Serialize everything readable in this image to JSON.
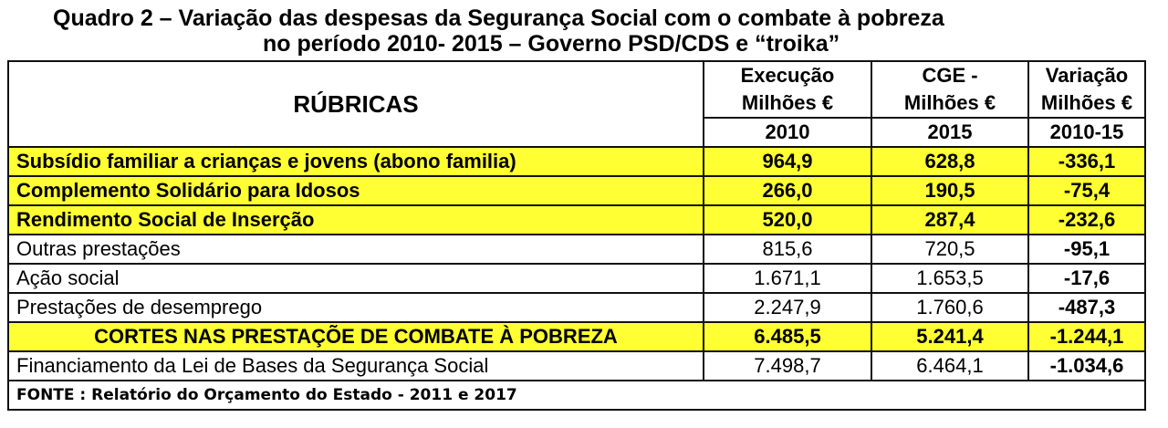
{
  "title": {
    "line1": "Quadro 2 – Variação das despesas da Segurança Social com o combate à pobreza",
    "line2": "no período 2010- 2015 – Governo PSD/CDS e “troika”"
  },
  "header": {
    "label": "RÚBRICAS",
    "col1": {
      "line1": "Execução",
      "line2": "Milhões €",
      "year": "2010"
    },
    "col2": {
      "line1": "CGE -",
      "line2": "Milhões €",
      "year": "2015"
    },
    "col3": {
      "line1": "Variação",
      "line2": "Milhões €",
      "year": "2010-15"
    }
  },
  "rows": [
    {
      "label": "Subsídio familiar a crianças e jovens (abono familia)",
      "v2010": "964,9",
      "v2015": "628,8",
      "var": "-336,1",
      "highlight": true
    },
    {
      "label": "Complemento Solidário para Idosos",
      "v2010": "266,0",
      "v2015": "190,5",
      "var": "-75,4",
      "highlight": true
    },
    {
      "label": "Rendimento Social de Inserção",
      "v2010": "520,0",
      "v2015": "287,4",
      "var": "-232,6",
      "highlight": true
    },
    {
      "label": "Outras prestações",
      "v2010": "815,6",
      "v2015": "720,5",
      "var": "-95,1",
      "highlight": false
    },
    {
      "label": "Ação social",
      "v2010": "1.671,1",
      "v2015": "1.653,5",
      "var": "-17,6",
      "highlight": false
    },
    {
      "label": "Prestações de desemprego",
      "v2010": "2.247,9",
      "v2015": "1.760,6",
      "var": "-487,3",
      "highlight": false
    },
    {
      "label": "CORTES NAS PRESTAÇÕE DE COMBATE À POBREZA",
      "v2010": "6.485,5",
      "v2015": "5.241,4",
      "var": "-1.244,1",
      "highlight": true
    },
    {
      "label": "Financiamento da Lei de Bases da Segurança Social",
      "v2010": "7.498,7",
      "v2015": "6.464,1",
      "var": "-1.034,6",
      "highlight": false
    }
  ],
  "source": "FONTE : Relatório do Orçamento do Estado - 2011 e 2017",
  "colors": {
    "highlight": "#ffff33",
    "border": "#111111"
  }
}
